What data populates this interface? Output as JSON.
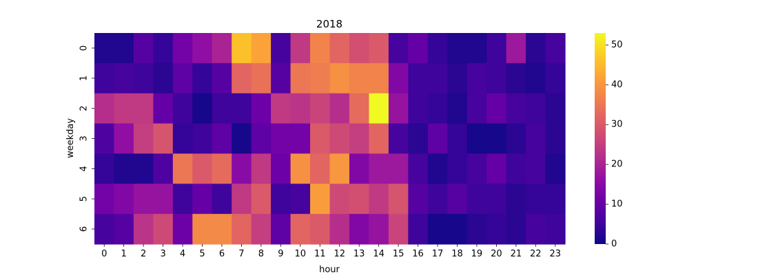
{
  "chart_data": {
    "type": "heatmap",
    "title": "2018",
    "xlabel": "hour",
    "ylabel": "weekday",
    "x": [
      "0",
      "1",
      "2",
      "3",
      "4",
      "5",
      "6",
      "7",
      "8",
      "9",
      "10",
      "11",
      "12",
      "13",
      "14",
      "15",
      "16",
      "17",
      "18",
      "19",
      "20",
      "21",
      "22",
      "23"
    ],
    "y": [
      "0",
      "1",
      "2",
      "3",
      "4",
      "5",
      "6"
    ],
    "values": [
      [
        2,
        2,
        8,
        4,
        12,
        16,
        20,
        46,
        42,
        6,
        24,
        37,
        32,
        28,
        30,
        6,
        10,
        4,
        2,
        2,
        5,
        18,
        3,
        6
      ],
      [
        5,
        6,
        5,
        3,
        9,
        4,
        8,
        32,
        34,
        8,
        35,
        36,
        39,
        37,
        37,
        14,
        5,
        5,
        3,
        6,
        5,
        3,
        2,
        4
      ],
      [
        22,
        24,
        24,
        10,
        5,
        1,
        5,
        5,
        11,
        24,
        23,
        26,
        22,
        33,
        53,
        17,
        5,
        4,
        2,
        6,
        10,
        6,
        5,
        3
      ],
      [
        7,
        16,
        25,
        29,
        4,
        5,
        9,
        1,
        9,
        12,
        12,
        30,
        27,
        25,
        32,
        6,
        3,
        9,
        4,
        1,
        1,
        3,
        6,
        3
      ],
      [
        4,
        2,
        2,
        7,
        35,
        30,
        33,
        15,
        24,
        11,
        39,
        32,
        40,
        14,
        18,
        18,
        6,
        2,
        4,
        6,
        10,
        5,
        6,
        2
      ],
      [
        12,
        14,
        17,
        17,
        5,
        10,
        5,
        24,
        30,
        5,
        6,
        41,
        27,
        28,
        24,
        29,
        8,
        5,
        8,
        5,
        5,
        3,
        4,
        4
      ],
      [
        6,
        8,
        23,
        27,
        11,
        38,
        38,
        32,
        25,
        9,
        32,
        30,
        22,
        14,
        17,
        26,
        5,
        1,
        1,
        3,
        4,
        3,
        6,
        5
      ]
    ],
    "colorbar": {
      "min": 0,
      "max": 53,
      "ticks": [
        0,
        10,
        20,
        30,
        40,
        50
      ]
    },
    "colormap": "plasma",
    "grid": false,
    "legend": "colorbar-right"
  }
}
